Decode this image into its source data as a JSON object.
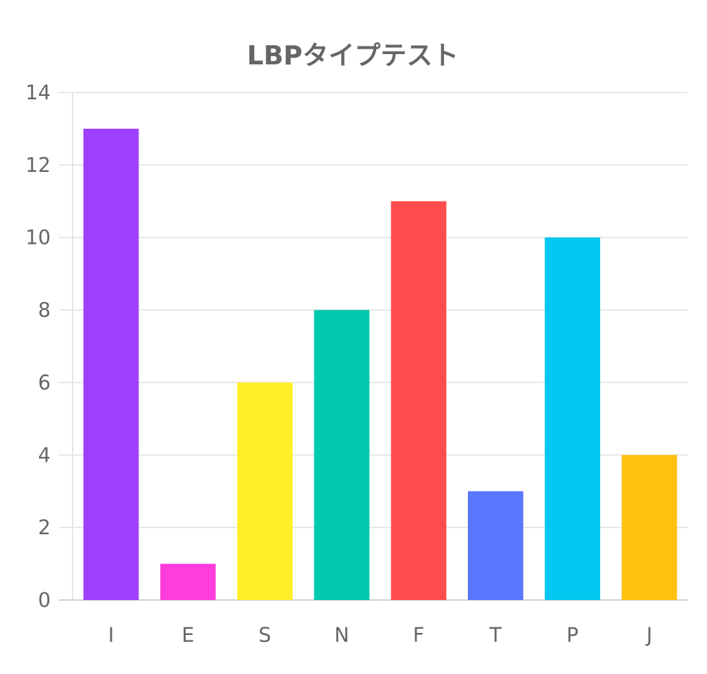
{
  "chart_data": {
    "type": "bar",
    "title": "LBPタイプテスト",
    "categories": [
      "I",
      "E",
      "S",
      "N",
      "F",
      "T",
      "P",
      "J"
    ],
    "values": [
      13,
      1,
      6,
      8,
      11,
      3,
      10,
      4
    ],
    "colors": [
      "#9f40ff",
      "#ff3ddc",
      "#ffef26",
      "#00c9ad",
      "#ff4d4d",
      "#5976ff",
      "#00c8f0",
      "#ffc10f"
    ],
    "ylim": [
      0,
      14
    ],
    "yticks": [
      0,
      2,
      4,
      6,
      8,
      10,
      12,
      14
    ],
    "grid": true,
    "legend": "none"
  }
}
